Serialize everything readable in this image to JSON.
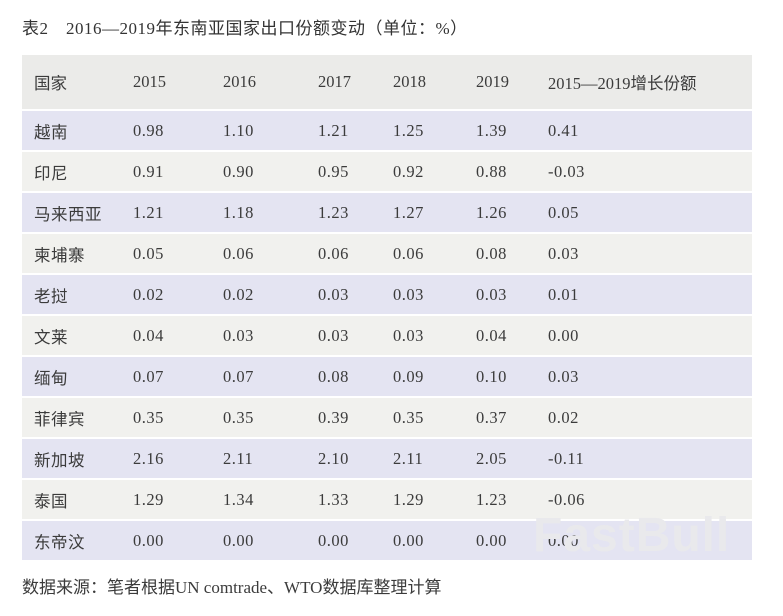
{
  "title": "表2　2016—2019年东南亚国家出口份额变动（单位：%）",
  "source_note": "数据来源：笔者根据UN comtrade、WTO数据库整理计算",
  "watermark": "FastBull",
  "colors": {
    "header_bg": "#ebebe9",
    "row_odd_bg": "#e4e4f2",
    "row_even_bg": "#f1f1ee",
    "text": "#3b3b3b",
    "watermark": "#e9e9ec"
  },
  "chart_data": {
    "type": "table",
    "title": "表2　2016—2019年东南亚国家出口份额变动（单位：%）",
    "columns": [
      "国家",
      "2015",
      "2016",
      "2017",
      "2018",
      "2019",
      "2015—2019增长份额"
    ],
    "rows": [
      [
        "越南",
        "0.98",
        "1.10",
        "1.21",
        "1.25",
        "1.39",
        "0.41"
      ],
      [
        "印尼",
        "0.91",
        "0.90",
        "0.95",
        "0.92",
        "0.88",
        "-0.03"
      ],
      [
        "马来西亚",
        "1.21",
        "1.18",
        "1.23",
        "1.27",
        "1.26",
        "0.05"
      ],
      [
        "柬埔寨",
        "0.05",
        "0.06",
        "0.06",
        "0.06",
        "0.08",
        "0.03"
      ],
      [
        "老挝",
        "0.02",
        "0.02",
        "0.03",
        "0.03",
        "0.03",
        "0.01"
      ],
      [
        "文莱",
        "0.04",
        "0.03",
        "0.03",
        "0.03",
        "0.04",
        "0.00"
      ],
      [
        "缅甸",
        "0.07",
        "0.07",
        "0.08",
        "0.09",
        "0.10",
        "0.03"
      ],
      [
        "菲律宾",
        "0.35",
        "0.35",
        "0.39",
        "0.35",
        "0.37",
        "0.02"
      ],
      [
        "新加坡",
        "2.16",
        "2.11",
        "2.10",
        "2.11",
        "2.05",
        "-0.11"
      ],
      [
        "泰国",
        "1.29",
        "1.34",
        "1.33",
        "1.29",
        "1.23",
        "-0.06"
      ],
      [
        "东帝汶",
        "0.00",
        "0.00",
        "0.00",
        "0.00",
        "0.00",
        "0.00"
      ]
    ]
  }
}
